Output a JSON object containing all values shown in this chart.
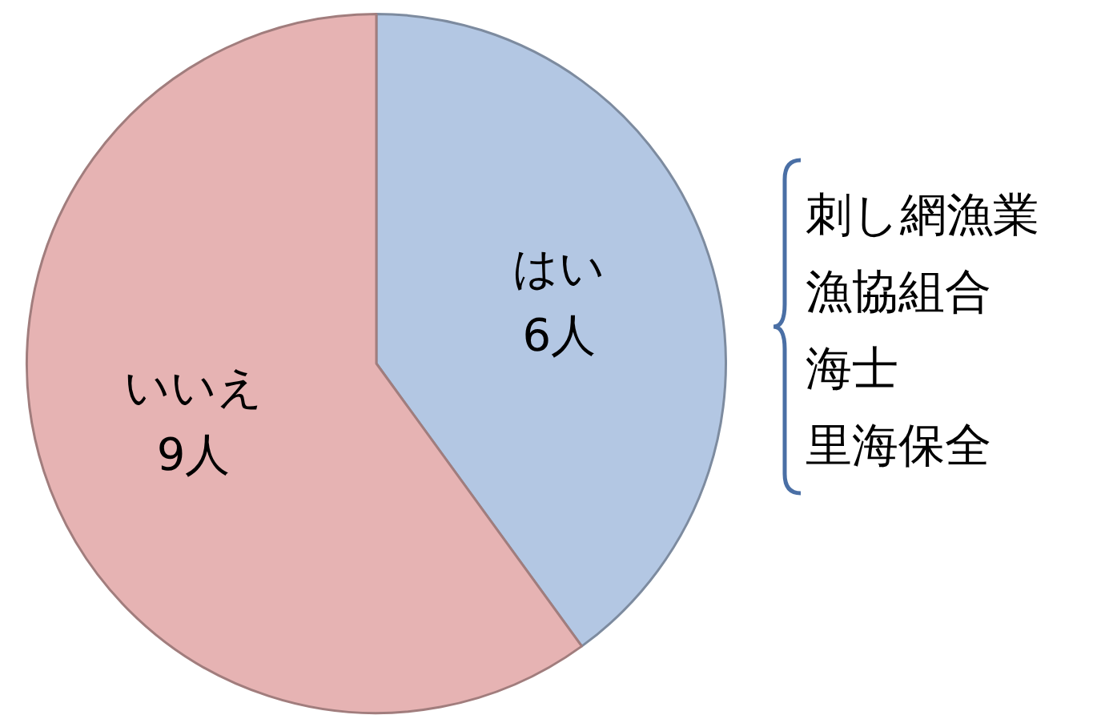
{
  "chart_data": {
    "type": "pie",
    "categories": [
      "はい",
      "いいえ"
    ],
    "values": [
      6,
      9
    ],
    "value_labels": [
      "6人",
      "9人"
    ],
    "colors": [
      "#b3c7e3",
      "#e6b3b3"
    ],
    "legend": false,
    "annotations": [
      "刺し網漁業",
      "漁協組合",
      "海士",
      "里海保全"
    ]
  }
}
